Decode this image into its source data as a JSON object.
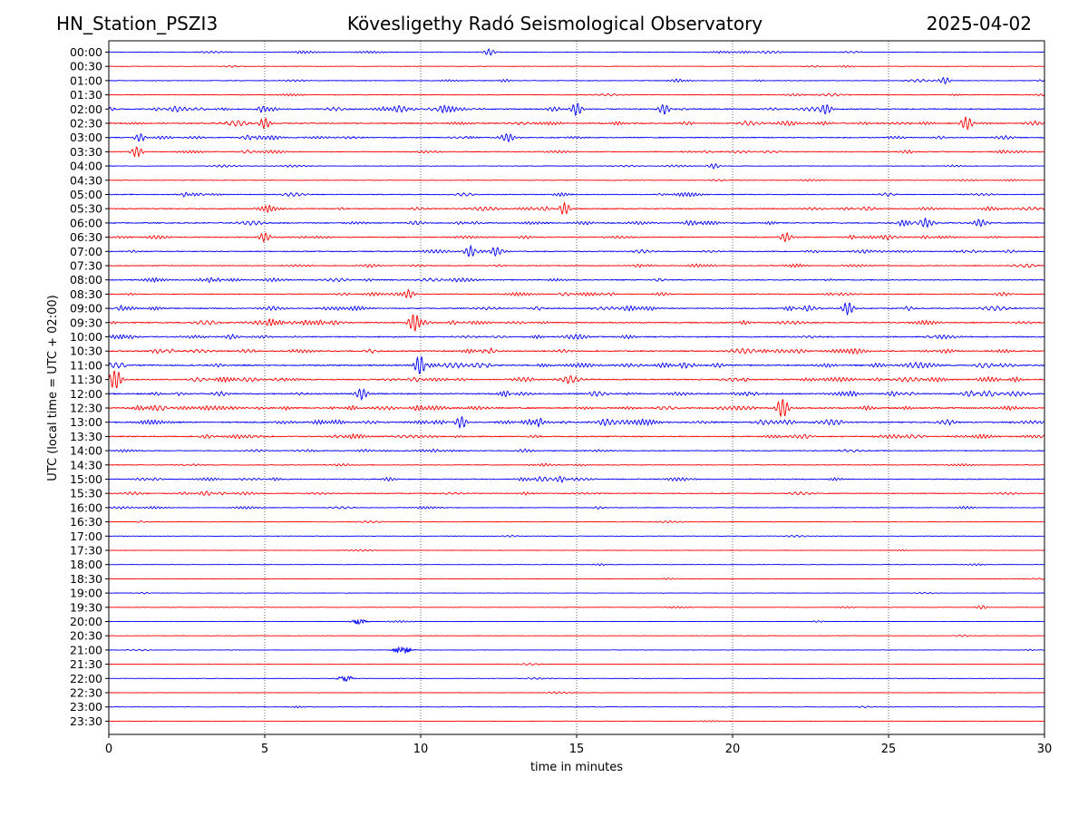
{
  "header": {
    "station": "HN_Station_PSZI3",
    "title": "Kövesligethy Radó Seismological Observatory",
    "date": "2025-04-02"
  },
  "chart_data": {
    "type": "line",
    "title": "Kövesligethy Radó Seismological Observatory",
    "xlabel": "time in minutes",
    "ylabel": "UTC (local time = UTC + 02:00)",
    "xlim": [
      0,
      30
    ],
    "x_ticks": [
      0,
      5,
      10,
      15,
      20,
      25,
      30
    ],
    "grid": "vertical dotted lines at 5-minute intervals",
    "series_colors": [
      "#0000ff",
      "#ff0000"
    ],
    "rows": [
      "00:00",
      "00:30",
      "01:00",
      "01:30",
      "02:00",
      "02:30",
      "03:00",
      "03:30",
      "04:00",
      "04:30",
      "05:00",
      "05:30",
      "06:00",
      "06:30",
      "07:00",
      "07:30",
      "08:00",
      "08:30",
      "09:00",
      "09:30",
      "10:00",
      "10:30",
      "11:00",
      "11:30",
      "12:00",
      "12:30",
      "13:00",
      "13:30",
      "14:00",
      "14:30",
      "15:00",
      "15:30",
      "16:00",
      "16:30",
      "17:00",
      "17:30",
      "18:00",
      "18:30",
      "19:00",
      "19:30",
      "20:00",
      "20:30",
      "21:00",
      "21:30",
      "22:00",
      "22:30",
      "23:00",
      "23:30"
    ],
    "activity_level": [
      0.25,
      0.12,
      0.28,
      0.22,
      0.75,
      0.65,
      0.55,
      0.42,
      0.18,
      0.15,
      0.42,
      0.55,
      0.65,
      0.55,
      0.48,
      0.42,
      0.5,
      0.45,
      0.65,
      0.7,
      0.6,
      0.75,
      0.85,
      0.8,
      0.8,
      0.85,
      0.85,
      0.65,
      0.45,
      0.25,
      0.45,
      0.4,
      0.25,
      0.1,
      0.08,
      0.06,
      0.08,
      0.06,
      0.06,
      0.06,
      0.06,
      0.05,
      0.06,
      0.05,
      0.06,
      0.05,
      0.06,
      0.05
    ],
    "events": [
      {
        "row": "00:00",
        "minute": 12.2,
        "amp": 0.5
      },
      {
        "row": "01:00",
        "minute": 26.8,
        "amp": 0.5
      },
      {
        "row": "02:00",
        "minute": 15.0,
        "amp": 0.9
      },
      {
        "row": "02:00",
        "minute": 17.8,
        "amp": 0.8
      },
      {
        "row": "02:00",
        "minute": 23.0,
        "amp": 0.7
      },
      {
        "row": "02:30",
        "minute": 5.0,
        "amp": 0.8
      },
      {
        "row": "02:30",
        "minute": 27.5,
        "amp": 1.0
      },
      {
        "row": "03:00",
        "minute": 1.0,
        "amp": 0.6
      },
      {
        "row": "03:00",
        "minute": 12.8,
        "amp": 0.5
      },
      {
        "row": "03:30",
        "minute": 0.9,
        "amp": 0.8
      },
      {
        "row": "04:00",
        "minute": 19.4,
        "amp": 0.4
      },
      {
        "row": "05:30",
        "minute": 14.6,
        "amp": 1.0
      },
      {
        "row": "06:00",
        "minute": 26.2,
        "amp": 0.8
      },
      {
        "row": "06:00",
        "minute": 27.9,
        "amp": 0.7
      },
      {
        "row": "06:30",
        "minute": 5.0,
        "amp": 0.7
      },
      {
        "row": "06:30",
        "minute": 21.7,
        "amp": 0.7
      },
      {
        "row": "07:00",
        "minute": 11.6,
        "amp": 0.9
      },
      {
        "row": "07:00",
        "minute": 12.4,
        "amp": 0.7
      },
      {
        "row": "08:30",
        "minute": 9.6,
        "amp": 0.8
      },
      {
        "row": "09:00",
        "minute": 23.7,
        "amp": 1.0
      },
      {
        "row": "09:30",
        "minute": 9.8,
        "amp": 1.6
      },
      {
        "row": "11:00",
        "minute": 10.0,
        "amp": 1.6
      },
      {
        "row": "11:30",
        "minute": 0.2,
        "amp": 1.6
      },
      {
        "row": "12:00",
        "minute": 8.1,
        "amp": 0.9
      },
      {
        "row": "12:30",
        "minute": 21.6,
        "amp": 1.6
      },
      {
        "row": "13:00",
        "minute": 11.3,
        "amp": 0.9
      },
      {
        "row": "15:00",
        "minute": 14.5,
        "amp": 0.5
      },
      {
        "row": "19:30",
        "minute": 28.0,
        "amp": 0.3
      },
      {
        "row": "20:00",
        "minute": 8.0,
        "amp": 0.35,
        "burst": true
      },
      {
        "row": "21:00",
        "minute": 9.4,
        "amp": 0.6,
        "burst": true
      },
      {
        "row": "22:00",
        "minute": 7.6,
        "amp": 0.4,
        "burst": true
      }
    ]
  }
}
